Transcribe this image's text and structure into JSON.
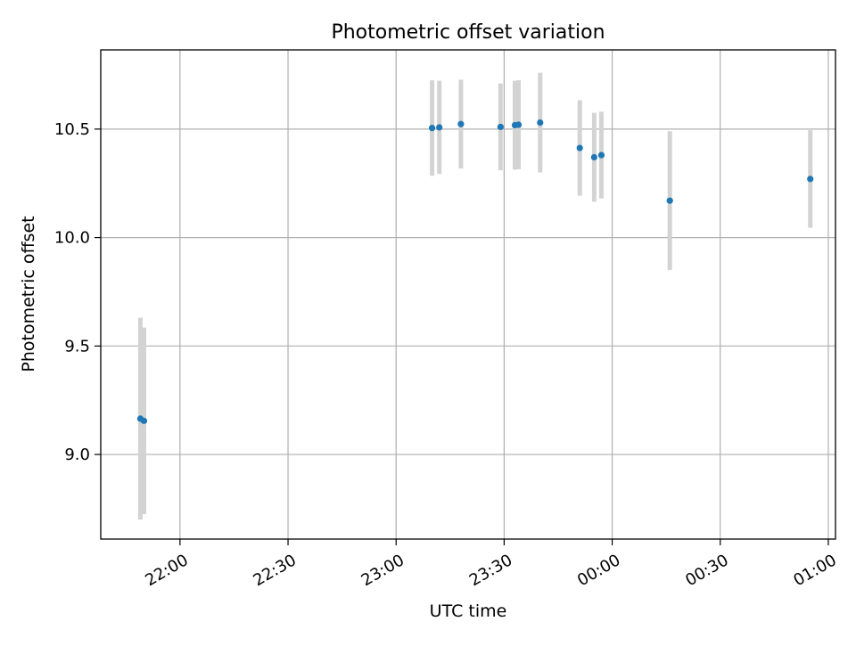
{
  "chart_data": {
    "type": "scatter",
    "title": "Photometric offset variation",
    "xlabel": "UTC time",
    "ylabel": "Photometric offset",
    "x_axis_type": "time",
    "xlim": [
      "21:38",
      "01:02"
    ],
    "ylim": [
      8.61,
      10.865
    ],
    "x_ticks": [
      "22:00",
      "22:30",
      "23:00",
      "23:30",
      "00:00",
      "00:30",
      "01:00"
    ],
    "y_ticks": [
      9.0,
      9.5,
      10.0,
      10.5
    ],
    "grid": true,
    "legend": "none",
    "marker_color": "#1f77b4",
    "errorbar_color": "#d3d3d3",
    "points": [
      {
        "time": "21:49",
        "y": 9.165,
        "err": 0.465
      },
      {
        "time": "21:50",
        "y": 9.155,
        "err": 0.43
      },
      {
        "time": "23:10",
        "y": 10.505,
        "err": 0.22
      },
      {
        "time": "23:12",
        "y": 10.508,
        "err": 0.215
      },
      {
        "time": "23:18",
        "y": 10.523,
        "err": 0.205
      },
      {
        "time": "23:29",
        "y": 10.51,
        "err": 0.2
      },
      {
        "time": "23:33",
        "y": 10.518,
        "err": 0.205
      },
      {
        "time": "23:34",
        "y": 10.52,
        "err": 0.205
      },
      {
        "time": "23:40",
        "y": 10.53,
        "err": 0.23
      },
      {
        "time": "23:51",
        "y": 10.413,
        "err": 0.22
      },
      {
        "time": "23:55",
        "y": 10.37,
        "err": 0.205
      },
      {
        "time": "23:57",
        "y": 10.38,
        "err": 0.2
      },
      {
        "time": "00:16",
        "y": 10.17,
        "err": 0.32
      },
      {
        "time": "00:55",
        "y": 10.27,
        "err": 0.225
      }
    ]
  }
}
